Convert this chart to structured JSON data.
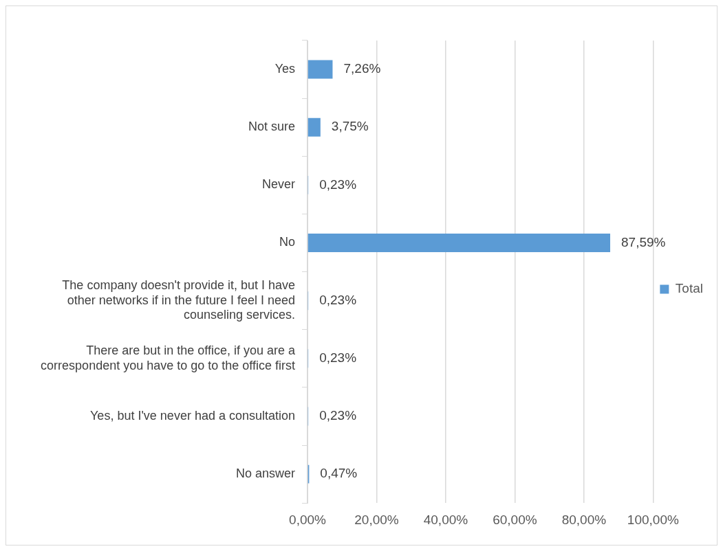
{
  "chart_data": {
    "type": "bar",
    "orientation": "horizontal",
    "categories": [
      "Yes",
      "Not sure",
      "Never",
      "No",
      "The company doesn't provide it, but I have other networks if in the future I feel I need counseling services.",
      "There are but in the office, if you are a correspondent you have to go to the office first",
      "Yes, but I've never had a consultation",
      "No answer"
    ],
    "series": [
      {
        "name": "Total",
        "color": "#5b9bd5",
        "values": [
          7.26,
          3.75,
          0.23,
          87.59,
          0.23,
          0.23,
          0.23,
          0.47
        ],
        "value_labels": [
          "7,26%",
          "3,75%",
          "0,23%",
          "87,59%",
          "0,23%",
          "0,23%",
          "0,23%",
          "0,47%"
        ]
      }
    ],
    "xlim": [
      0,
      100
    ],
    "xticks": [
      {
        "value": 0,
        "label": "0,00%"
      },
      {
        "value": 20,
        "label": "20,00%"
      },
      {
        "value": 40,
        "label": "40,00%"
      },
      {
        "value": 60,
        "label": "60,00%"
      },
      {
        "value": 80,
        "label": "80,00%"
      },
      {
        "value": 100,
        "label": "100,00%"
      }
    ],
    "grid": "x",
    "legend": "right"
  }
}
